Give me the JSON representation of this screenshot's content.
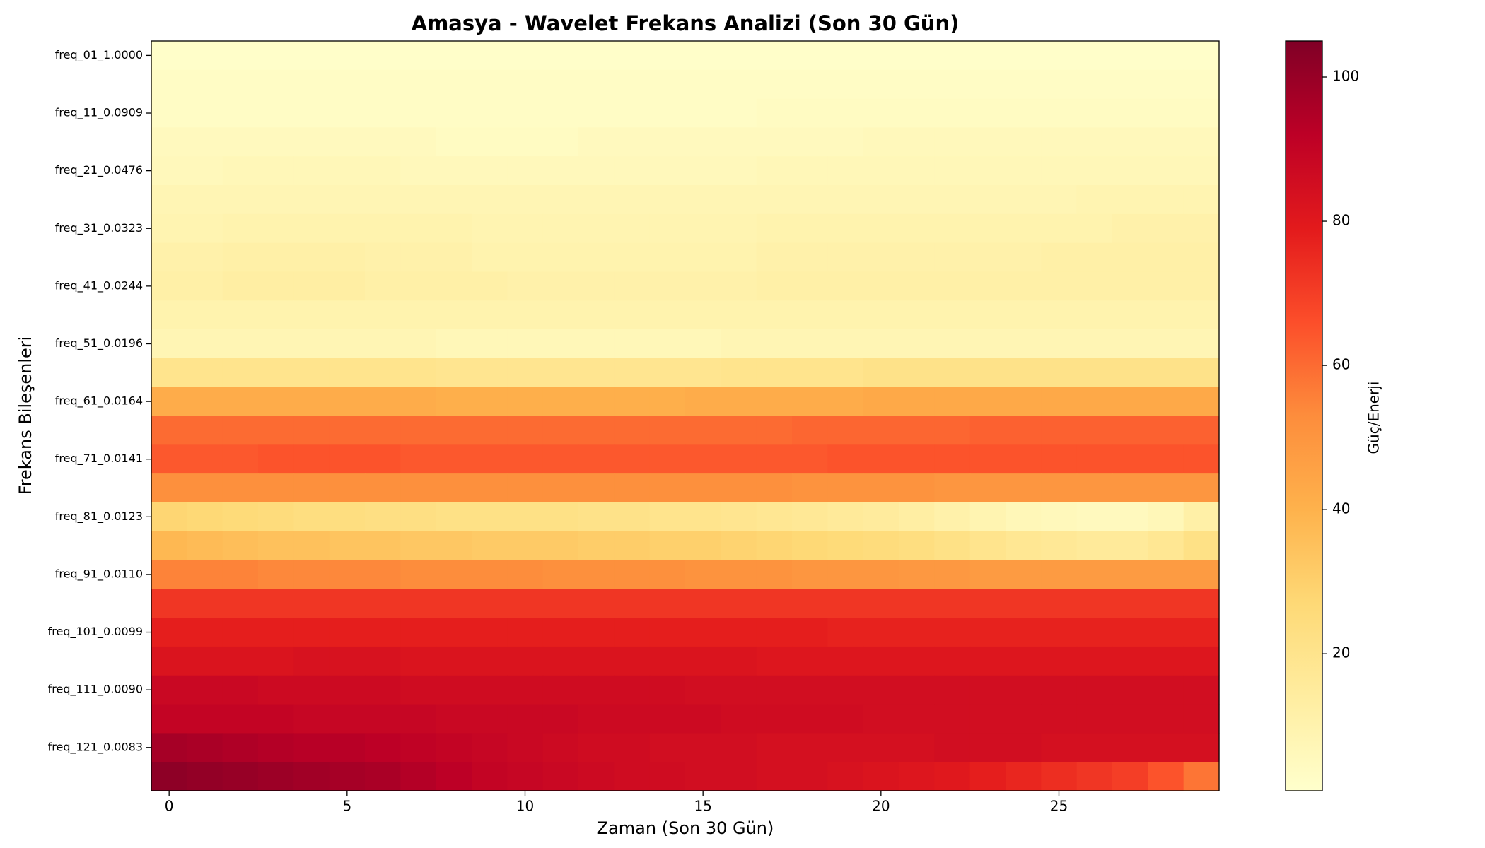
{
  "chart_data": {
    "type": "heatmap",
    "title": "Amasya - Wavelet Frekans Analizi (Son 30 Gün)",
    "xlabel": "Zaman (Son 30 Gün)",
    "ylabel": "Frekans Bileşenleri",
    "colorbar_label": "Güç/Enerji",
    "x": [
      0,
      1,
      2,
      3,
      4,
      5,
      6,
      7,
      8,
      9,
      10,
      11,
      12,
      13,
      14,
      15,
      16,
      17,
      18,
      19,
      20,
      21,
      22,
      23,
      24,
      25,
      26,
      27,
      28,
      29
    ],
    "xlim": [
      -0.5,
      29.5
    ],
    "xticks": [
      0,
      5,
      10,
      15,
      20,
      25
    ],
    "categories": [
      "freq_01_1.0000",
      null,
      "freq_11_0.0909",
      null,
      "freq_21_0.0476",
      null,
      "freq_31_0.0323",
      null,
      "freq_41_0.0244",
      null,
      "freq_51_0.0196",
      null,
      "freq_61_0.0164",
      null,
      "freq_71_0.0141",
      null,
      "freq_81_0.0123",
      null,
      "freq_91_0.0110",
      null,
      "freq_101_0.0099",
      null,
      "freq_111_0.0090",
      null,
      "freq_121_0.0083",
      null
    ],
    "clim": [
      1,
      105
    ],
    "cticks": [
      20,
      40,
      60,
      80,
      100
    ],
    "colormap": [
      "#ffffcc",
      "#ffeda0",
      "#fed976",
      "#feb24c",
      "#fd8d3c",
      "#fc4e2a",
      "#e31a1c",
      "#bd0026",
      "#800026"
    ],
    "values": [
      [
        2,
        2,
        2,
        2,
        2,
        2,
        2,
        2,
        2,
        2,
        2,
        2,
        2,
        2,
        2,
        2,
        2,
        2,
        2,
        2,
        2,
        2,
        2,
        2,
        2,
        2,
        2,
        2,
        2,
        2
      ],
      [
        3,
        3,
        3,
        3,
        3,
        3,
        3,
        3,
        3,
        3,
        3,
        3,
        3,
        3,
        3,
        3,
        3,
        3,
        3,
        3,
        3,
        3,
        3,
        3,
        3,
        3,
        3,
        3,
        3,
        3
      ],
      [
        3,
        3,
        3,
        3,
        3,
        3,
        3,
        3,
        3,
        3,
        3,
        3,
        3,
        3,
        3,
        3,
        3,
        4,
        4,
        4,
        4,
        4,
        4,
        4,
        4,
        4,
        4,
        4,
        4,
        4
      ],
      [
        5,
        5,
        5,
        5,
        5,
        5,
        5,
        5,
        4,
        4,
        4,
        4,
        5,
        5,
        5,
        5,
        5,
        5,
        5,
        5,
        6,
        6,
        6,
        6,
        6,
        6,
        6,
        6,
        6,
        6
      ],
      [
        6,
        6,
        7,
        7,
        7,
        7,
        7,
        6,
        6,
        6,
        6,
        6,
        6,
        6,
        6,
        6,
        6,
        7,
        7,
        7,
        7,
        7,
        7,
        7,
        7,
        7,
        7,
        7,
        7,
        7
      ],
      [
        8,
        8,
        8,
        8,
        8,
        8,
        8,
        8,
        8,
        8,
        8,
        8,
        8,
        8,
        8,
        8,
        8,
        8,
        8,
        8,
        8,
        8,
        8,
        8,
        8,
        8,
        9,
        9,
        9,
        9
      ],
      [
        9,
        9,
        10,
        10,
        10,
        10,
        10,
        10,
        10,
        9,
        9,
        9,
        9,
        9,
        9,
        9,
        9,
        10,
        10,
        10,
        10,
        10,
        10,
        10,
        10,
        10,
        10,
        11,
        11,
        11
      ],
      [
        11,
        11,
        12,
        12,
        12,
        12,
        11,
        11,
        11,
        10,
        10,
        10,
        10,
        10,
        10,
        10,
        10,
        11,
        11,
        11,
        11,
        11,
        11,
        11,
        11,
        12,
        12,
        12,
        12,
        12
      ],
      [
        12,
        12,
        13,
        13,
        13,
        13,
        12,
        12,
        12,
        12,
        11,
        11,
        11,
        11,
        11,
        11,
        11,
        12,
        12,
        12,
        12,
        12,
        12,
        12,
        12,
        12,
        12,
        12,
        12,
        12
      ],
      [
        10,
        10,
        10,
        10,
        10,
        10,
        10,
        10,
        10,
        10,
        10,
        10,
        10,
        10,
        10,
        10,
        10,
        10,
        10,
        10,
        10,
        10,
        10,
        10,
        10,
        10,
        10,
        10,
        10,
        10
      ],
      [
        8,
        8,
        8,
        8,
        8,
        8,
        8,
        8,
        7,
        7,
        7,
        7,
        7,
        7,
        7,
        7,
        8,
        8,
        8,
        8,
        8,
        8,
        8,
        8,
        8,
        8,
        8,
        8,
        8,
        8
      ],
      [
        20,
        20,
        20,
        20,
        20,
        20,
        20,
        20,
        19,
        19,
        19,
        19,
        19,
        19,
        19,
        19,
        20,
        20,
        20,
        20,
        21,
        21,
        21,
        21,
        21,
        21,
        21,
        21,
        21,
        21
      ],
      [
        42,
        42,
        42,
        42,
        42,
        42,
        42,
        42,
        41,
        41,
        41,
        41,
        41,
        41,
        41,
        42,
        42,
        42,
        42,
        42,
        43,
        43,
        43,
        43,
        43,
        43,
        43,
        43,
        43,
        43
      ],
      [
        60,
        60,
        60,
        60,
        60,
        60,
        60,
        60,
        60,
        60,
        60,
        60,
        60,
        60,
        60,
        60,
        60,
        60,
        61,
        61,
        61,
        61,
        61,
        62,
        62,
        62,
        62,
        62,
        62,
        62
      ],
      [
        64,
        64,
        64,
        65,
        65,
        65,
        65,
        64,
        64,
        64,
        64,
        64,
        64,
        64,
        64,
        64,
        64,
        64,
        64,
        65,
        65,
        65,
        65,
        65,
        65,
        65,
        65,
        65,
        65,
        65
      ],
      [
        52,
        52,
        52,
        52,
        52,
        52,
        52,
        52,
        52,
        52,
        52,
        52,
        52,
        52,
        52,
        52,
        52,
        52,
        51,
        51,
        51,
        51,
        50,
        50,
        50,
        50,
        50,
        50,
        50,
        50
      ],
      [
        28,
        27,
        26,
        25,
        24,
        24,
        23,
        23,
        22,
        22,
        22,
        22,
        21,
        21,
        20,
        20,
        19,
        18,
        17,
        16,
        15,
        13,
        11,
        9,
        7,
        6,
        5,
        5,
        7,
        12
      ],
      [
        38,
        37,
        36,
        35,
        35,
        34,
        34,
        33,
        33,
        32,
        32,
        32,
        31,
        31,
        30,
        30,
        29,
        28,
        27,
        26,
        25,
        24,
        22,
        20,
        18,
        17,
        16,
        16,
        18,
        22
      ],
      [
        55,
        55,
        55,
        54,
        54,
        54,
        54,
        53,
        53,
        53,
        53,
        52,
        52,
        52,
        52,
        51,
        51,
        51,
        50,
        50,
        50,
        49,
        49,
        48,
        48,
        48,
        48,
        48,
        48,
        48
      ],
      [
        72,
        72,
        72,
        72,
        72,
        72,
        72,
        72,
        72,
        72,
        72,
        72,
        72,
        72,
        72,
        72,
        72,
        72,
        72,
        72,
        72,
        72,
        72,
        72,
        72,
        72,
        72,
        72,
        72,
        72
      ],
      [
        78,
        78,
        78,
        78,
        78,
        78,
        78,
        78,
        78,
        78,
        78,
        78,
        78,
        78,
        78,
        78,
        78,
        78,
        78,
        77,
        77,
        77,
        77,
        77,
        77,
        77,
        77,
        77,
        77,
        77
      ],
      [
        82,
        82,
        82,
        82,
        83,
        83,
        83,
        82,
        82,
        82,
        82,
        82,
        82,
        82,
        82,
        82,
        82,
        81,
        81,
        81,
        81,
        81,
        81,
        81,
        81,
        81,
        81,
        81,
        81,
        81
      ],
      [
        88,
        88,
        88,
        87,
        87,
        87,
        87,
        86,
        86,
        86,
        86,
        86,
        86,
        86,
        86,
        85,
        85,
        85,
        85,
        85,
        85,
        85,
        85,
        85,
        85,
        85,
        85,
        85,
        85,
        85
      ],
      [
        90,
        90,
        90,
        90,
        89,
        89,
        89,
        89,
        88,
        88,
        88,
        88,
        87,
        87,
        87,
        87,
        86,
        86,
        86,
        86,
        85,
        85,
        85,
        85,
        85,
        85,
        85,
        85,
        85,
        85
      ],
      [
        97,
        96,
        95,
        94,
        93,
        93,
        92,
        91,
        90,
        89,
        88,
        87,
        86,
        86,
        85,
        85,
        85,
        84,
        84,
        84,
        84,
        84,
        85,
        85,
        85,
        84,
        84,
        84,
        84,
        84
      ],
      [
        102,
        101,
        100,
        99,
        98,
        97,
        96,
        94,
        92,
        90,
        89,
        88,
        87,
        86,
        86,
        85,
        85,
        84,
        84,
        83,
        82,
        81,
        80,
        78,
        76,
        74,
        72,
        70,
        65,
        58
      ]
    ]
  }
}
